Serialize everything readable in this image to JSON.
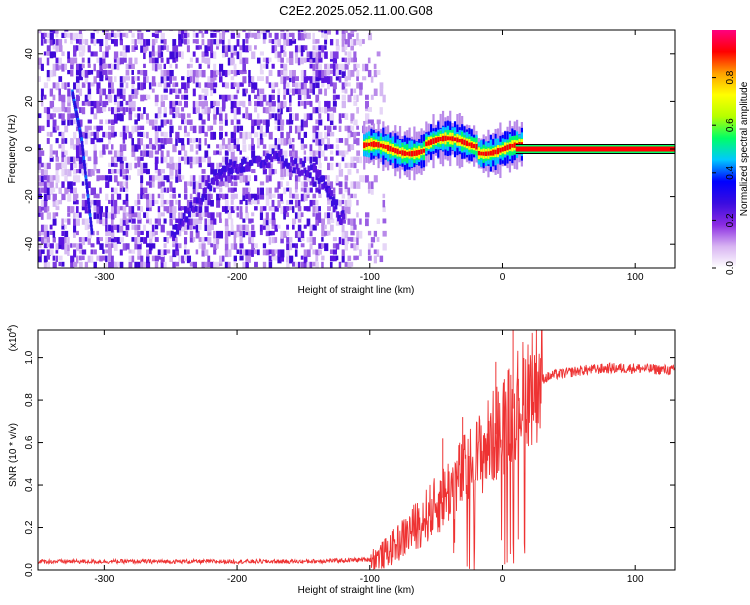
{
  "page": {
    "title": "C2E2.2025.052.11.00.G08"
  },
  "colorbar": {
    "label": "Normalized spectral amplitude",
    "range": [
      0,
      1
    ],
    "ticks": [
      0.0,
      0.2,
      0.4,
      0.6,
      0.8
    ],
    "tick_labels": [
      "0.0",
      "0.2",
      "0.4",
      "0.6",
      "0.8"
    ],
    "colors": [
      "#ffffff",
      "#d8b4f2",
      "#8a2be2",
      "#3a0ce0",
      "#0000ff",
      "#00c8ff",
      "#00ff66",
      "#b6ff00",
      "#ffff00",
      "#ffa000",
      "#ff0000",
      "#ff007f"
    ]
  },
  "chart_data": [
    {
      "type": "heatmap",
      "xlabel": "Height of straight line (km)",
      "ylabel": "Frequency (Hz)",
      "xlim": [
        -350,
        130
      ],
      "ylim": [
        -50,
        50
      ],
      "x_ticks": [
        -300,
        -200,
        -100,
        0,
        100
      ],
      "x_tick_labels": [
        "-300",
        "-200",
        "-100",
        "0",
        "100"
      ],
      "y_ticks": [
        -40,
        -20,
        0,
        20,
        40
      ],
      "y_tick_labels": [
        "-40",
        "-20",
        "0",
        "20",
        "40"
      ],
      "features": {
        "noise_region_x": [
          -350,
          -90
        ],
        "strong_line_x": [
          -100,
          130
        ],
        "strong_line_freq": 0,
        "arc_points": [
          [
            -250,
            -35
          ],
          [
            -220,
            -12
          ],
          [
            -200,
            -5
          ],
          [
            -170,
            -2
          ],
          [
            -140,
            -10
          ],
          [
            -120,
            -30
          ]
        ],
        "streak_points": [
          [
            -325,
            25
          ],
          [
            -318,
            5
          ],
          [
            -310,
            -35
          ]
        ]
      }
    },
    {
      "type": "line",
      "xlabel": "Height of straight line (km)",
      "ylabel": "SNR (10 * v/v)",
      "y_multiplier": "(x10",
      "y_multiplier_exp": "4",
      "y_multiplier_close": ")",
      "xlim": [
        -350,
        130
      ],
      "ylim": [
        0,
        1.13
      ],
      "x_ticks": [
        -300,
        -200,
        -100,
        0,
        100
      ],
      "x_tick_labels": [
        "-300",
        "-200",
        "-100",
        "0",
        "100"
      ],
      "y_ticks": [
        0.0,
        0.2,
        0.4,
        0.6,
        0.8,
        1.0
      ],
      "y_tick_labels": [
        "0.0",
        "0.2",
        "0.4",
        "0.6",
        "0.8",
        "1.0"
      ],
      "color": "#ee3333",
      "series": [
        {
          "x": [
            -350,
            -300,
            -250,
            -200,
            -150,
            -120,
            -100,
            -90,
            -80,
            -70,
            -60,
            -50,
            -40,
            -30,
            -20,
            -10,
            0,
            10,
            20,
            30,
            40,
            60,
            80,
            100,
            130
          ],
          "y": [
            0.04,
            0.04,
            0.04,
            0.04,
            0.04,
            0.045,
            0.05,
            0.07,
            0.12,
            0.18,
            0.24,
            0.3,
            0.38,
            0.45,
            0.52,
            0.6,
            0.68,
            0.78,
            0.86,
            0.9,
            0.92,
            0.94,
            0.95,
            0.95,
            0.94
          ]
        }
      ],
      "spikes": [
        [
          -45,
          0.62
        ],
        [
          -30,
          0.72
        ],
        [
          -5,
          0.98
        ],
        [
          8,
          1.13
        ],
        [
          12,
          0.9
        ]
      ]
    }
  ]
}
